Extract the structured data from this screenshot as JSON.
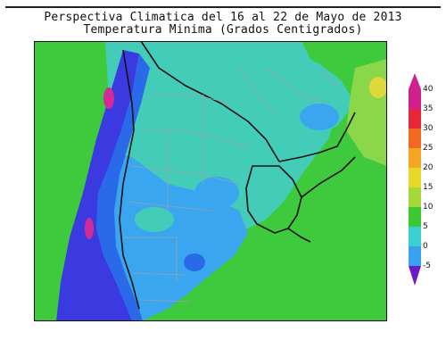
{
  "title": {
    "line1": "Perspectiva Climatica del 16 al 22 de Mayo de 2013",
    "line2": "Temperatura Minima (Grados Centigrados)"
  },
  "colorbar": {
    "ticks": [
      "40",
      "35",
      "30",
      "25",
      "20",
      "15",
      "10",
      "5",
      "0",
      "-5"
    ],
    "colors": [
      "#d0208e",
      "#e8263a",
      "#f06a22",
      "#f5a623",
      "#e8d82a",
      "#a6d83a",
      "#3cc832",
      "#3ccfcf",
      "#3aa0f0",
      "#2a5ae8",
      "#6a1ac8"
    ]
  },
  "map": {
    "colors": {
      "ocean_green": "#3fc93c",
      "land_cyan": "#43cdb8",
      "light_blue": "#3aa6f0",
      "blue": "#2a6ae8",
      "dark_blue": "#3a3ae0",
      "magenta": "#d22a96",
      "pale_green": "#8ad84a",
      "yellow": "#e0d83a"
    }
  }
}
